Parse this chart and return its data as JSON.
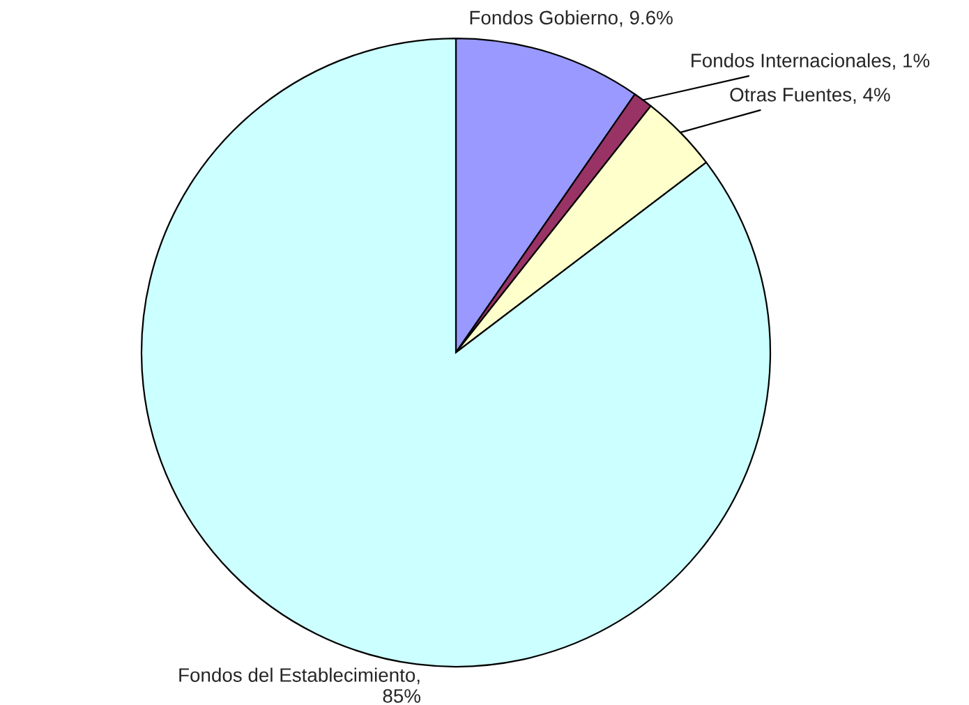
{
  "chart_data": {
    "type": "pie",
    "categories": [
      "Fondos Gobierno, 9.6%",
      "Fondos Internacionales, 1%",
      "Otras Fuentes, 4%",
      "Fondos del Establecimiento, 85%"
    ],
    "values": [
      9.6,
      1,
      4,
      85
    ],
    "colors": [
      "#9999ff",
      "#993366",
      "#ffffcc",
      "#ccffff"
    ]
  }
}
